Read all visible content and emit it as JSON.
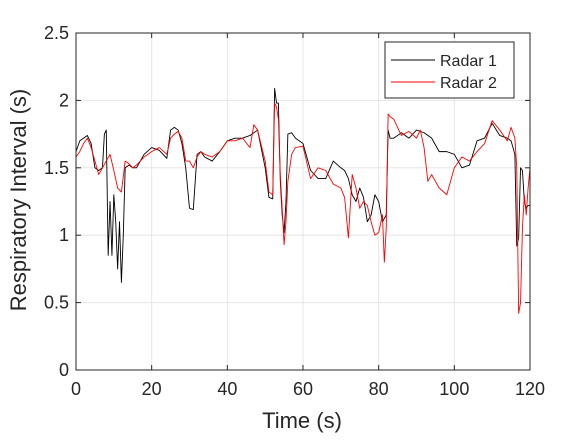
{
  "chart_data": {
    "type": "line",
    "title": "",
    "xlabel": "Time (s)",
    "ylabel": "Respiratory Interval (s)",
    "xlim": [
      0,
      120
    ],
    "ylim": [
      0,
      2.5
    ],
    "x_ticks": [
      0,
      20,
      40,
      60,
      80,
      100,
      120
    ],
    "x_tick_labels": [
      "0",
      "20",
      "40",
      "60",
      "80",
      "100",
      "120"
    ],
    "y_ticks": [
      0,
      0.5,
      1,
      1.5,
      2,
      2.5
    ],
    "y_tick_labels": [
      "0",
      "0.5",
      "1",
      "1.5",
      "2",
      "2.5"
    ],
    "grid": true,
    "legend_position": "top-right",
    "series": [
      {
        "name": "Radar 1",
        "color": "#000000",
        "x": [
          0,
          1,
          2,
          3,
          4,
          5,
          6,
          7,
          7.5,
          8,
          8.5,
          9,
          9.5,
          10,
          10.5,
          11,
          11.5,
          12,
          12.5,
          13,
          14,
          15,
          16,
          18,
          20,
          22,
          24,
          25,
          26,
          27,
          28,
          29,
          30,
          31,
          32,
          33,
          34,
          36,
          38,
          40,
          42,
          44,
          46,
          48,
          50,
          51,
          52,
          52.5,
          53,
          53.5,
          54,
          54.5,
          55,
          55.5,
          56,
          57,
          58,
          60,
          62,
          64,
          66,
          68,
          70,
          71,
          72,
          73,
          74,
          75,
          76,
          77,
          78,
          79,
          80,
          81,
          82,
          82.5,
          83,
          84,
          86,
          88,
          90,
          92,
          94,
          96,
          98,
          100,
          102,
          104,
          106,
          108,
          110,
          112,
          114,
          115,
          116,
          116.5,
          117,
          117.5,
          118,
          118.5,
          119,
          119.5,
          120
        ],
        "values": [
          1.62,
          1.7,
          1.72,
          1.74,
          1.68,
          1.5,
          1.48,
          1.5,
          1.75,
          1.78,
          0.85,
          1.25,
          0.85,
          1.3,
          1.1,
          0.75,
          1.1,
          0.65,
          1.0,
          1.5,
          1.52,
          1.5,
          1.5,
          1.6,
          1.65,
          1.63,
          1.57,
          1.78,
          1.8,
          1.78,
          1.68,
          1.5,
          1.2,
          1.19,
          1.6,
          1.62,
          1.58,
          1.55,
          1.62,
          1.7,
          1.72,
          1.72,
          1.74,
          1.78,
          1.5,
          1.28,
          1.27,
          2.09,
          1.98,
          1.98,
          1.4,
          1.15,
          1.02,
          1.25,
          1.75,
          1.76,
          1.72,
          1.68,
          1.48,
          1.42,
          1.42,
          1.55,
          1.5,
          1.48,
          1.42,
          1.3,
          1.25,
          1.35,
          1.28,
          1.1,
          1.15,
          1.3,
          1.25,
          1.1,
          1.15,
          1.78,
          1.72,
          1.72,
          1.76,
          1.72,
          1.78,
          1.76,
          1.72,
          1.62,
          1.62,
          1.6,
          1.5,
          1.52,
          1.7,
          1.72,
          1.83,
          1.74,
          1.72,
          1.7,
          1.6,
          0.92,
          0.98,
          1.5,
          1.48,
          1.25,
          1.2,
          1.22,
          1.22
        ]
      },
      {
        "name": "Radar 2",
        "color": "#ff0000",
        "x": [
          0,
          1,
          2,
          3,
          4,
          5,
          6,
          7,
          8,
          9,
          10,
          11,
          12,
          13,
          14,
          15,
          16,
          18,
          20,
          22,
          24,
          25,
          26,
          27,
          28,
          29,
          30,
          31,
          32,
          33,
          34,
          36,
          38,
          40,
          42,
          44,
          46,
          47,
          48,
          50,
          51,
          52,
          52.5,
          53,
          53.5,
          54,
          54.5,
          55,
          55.5,
          56,
          57,
          58,
          60,
          62,
          64,
          66,
          68,
          70,
          71,
          72,
          73,
          74,
          75,
          76,
          77,
          78,
          79,
          80,
          81,
          81.5,
          82,
          82.5,
          83,
          84,
          86,
          88,
          90,
          91,
          92,
          93,
          94,
          96,
          98,
          100,
          102,
          104,
          106,
          108,
          110,
          112,
          114,
          115,
          116,
          116.5,
          117,
          117.5,
          118,
          118.5,
          119,
          119.5,
          120
        ],
        "values": [
          1.58,
          1.62,
          1.68,
          1.72,
          1.65,
          1.55,
          1.45,
          1.5,
          1.55,
          1.6,
          1.48,
          1.35,
          1.32,
          1.55,
          1.53,
          1.5,
          1.52,
          1.58,
          1.62,
          1.65,
          1.6,
          1.72,
          1.75,
          1.77,
          1.72,
          1.55,
          1.55,
          1.5,
          1.58,
          1.62,
          1.6,
          1.58,
          1.62,
          1.7,
          1.7,
          1.72,
          1.65,
          1.82,
          1.78,
          1.55,
          1.32,
          1.3,
          1.98,
          1.95,
          1.86,
          1.45,
          1.2,
          0.93,
          1.1,
          1.4,
          1.6,
          1.65,
          1.66,
          1.42,
          1.5,
          1.48,
          1.38,
          1.35,
          1.28,
          0.98,
          1.45,
          1.35,
          1.2,
          1.25,
          1.22,
          1.1,
          1.0,
          1.02,
          1.15,
          0.8,
          1.05,
          1.9,
          1.88,
          1.86,
          1.74,
          1.77,
          1.72,
          1.78,
          1.65,
          1.4,
          1.45,
          1.35,
          1.3,
          1.5,
          1.58,
          1.55,
          1.62,
          1.68,
          1.85,
          1.78,
          1.7,
          1.8,
          1.72,
          1.5,
          0.42,
          0.5,
          1.05,
          1.3,
          1.15,
          1.35,
          1.5
        ]
      }
    ]
  }
}
